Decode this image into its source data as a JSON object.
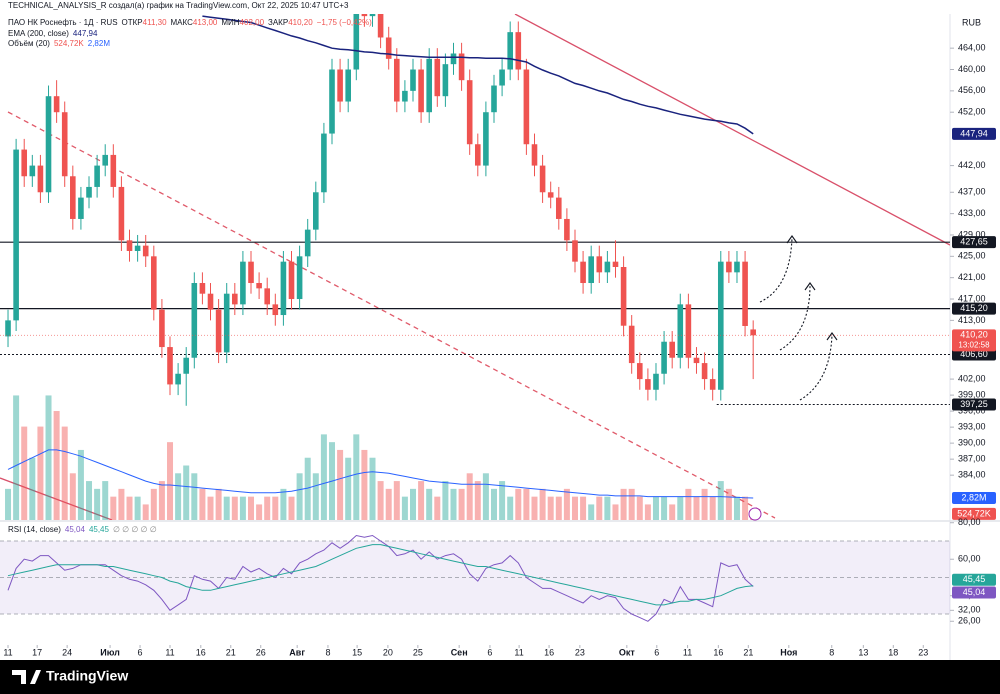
{
  "header": {
    "credit": "TECHNICAL_ANALYSIS_R создал(а) график на TradingView.com, Окт 22, 2025 10:47 UTC+3",
    "symbol": "ПАО НК Роснефть · 1Д · RUS",
    "ohlc": [
      {
        "label": "ОТКР",
        "value": "411,30"
      },
      {
        "label": "МАКС",
        "value": "413,00"
      },
      {
        "label": "МИН",
        "value": "402,00"
      },
      {
        "label": "ЗАКР",
        "value": "410,20"
      }
    ],
    "change": "−1,75 (−0,42%)",
    "currency": "RUB",
    "logo": "TradingView"
  },
  "chart_data": {
    "type": "candlestick",
    "grid": false,
    "up_color": "#26a69a",
    "down_color": "#ef5350",
    "xlim": [
      -0.99,
      116.3
    ],
    "ylim": [
      375.6,
      470.4
    ],
    "xticks": [
      {
        "value": 0,
        "label": "11"
      },
      {
        "value": 3.6,
        "label": "17"
      },
      {
        "value": 7.3,
        "label": "24"
      },
      {
        "value": 12.6,
        "label": "Июл"
      },
      {
        "value": 16.3,
        "label": "6"
      },
      {
        "value": 20,
        "label": "11"
      },
      {
        "value": 23.8,
        "label": "16"
      },
      {
        "value": 27.5,
        "label": "21"
      },
      {
        "value": 31.2,
        "label": "26"
      },
      {
        "value": 35.7,
        "label": "Авг"
      },
      {
        "value": 39.5,
        "label": "8"
      },
      {
        "value": 43.1,
        "label": "15"
      },
      {
        "value": 46.9,
        "label": "20"
      },
      {
        "value": 50.6,
        "label": "25"
      },
      {
        "value": 55.7,
        "label": "Сен"
      },
      {
        "value": 59.5,
        "label": "6"
      },
      {
        "value": 63.1,
        "label": "11"
      },
      {
        "value": 66.8,
        "label": "16"
      },
      {
        "value": 70.6,
        "label": "23"
      },
      {
        "value": 76.4,
        "label": "Окт"
      },
      {
        "value": 80.1,
        "label": "6"
      },
      {
        "value": 83.9,
        "label": "11"
      },
      {
        "value": 87.7,
        "label": "16"
      },
      {
        "value": 91.4,
        "label": "21"
      },
      {
        "value": 96.4,
        "label": "Ноя"
      },
      {
        "value": 101.7,
        "label": "8"
      },
      {
        "value": 105.6,
        "label": "13"
      },
      {
        "value": 109.3,
        "label": "18"
      },
      {
        "value": 113,
        "label": "23"
      }
    ],
    "yticks": [
      {
        "value": 464,
        "label": "464,00"
      },
      {
        "value": 460,
        "label": "460,00"
      },
      {
        "value": 456,
        "label": "456,00"
      },
      {
        "value": 452,
        "label": "452,00"
      },
      {
        "value": 442,
        "label": "442,00"
      },
      {
        "value": 437,
        "label": "437,00"
      },
      {
        "value": 433,
        "label": "433,00"
      },
      {
        "value": 429,
        "label": "429,00"
      },
      {
        "value": 425,
        "label": "425,00"
      },
      {
        "value": 421,
        "label": "421,00"
      },
      {
        "value": 417,
        "label": "417,00"
      },
      {
        "value": 413,
        "label": "413,00"
      },
      {
        "value": 402,
        "label": "402,00"
      },
      {
        "value": 399,
        "label": "399,00"
      },
      {
        "value": 396,
        "label": "396,00"
      },
      {
        "value": 393,
        "label": "393,00"
      },
      {
        "value": 390,
        "label": "390,00"
      },
      {
        "value": 387,
        "label": "387,00"
      },
      {
        "value": 384,
        "label": "384,00"
      }
    ],
    "open": [
      410,
      413,
      445,
      440,
      442,
      437,
      455,
      452,
      440,
      432,
      436,
      438,
      442,
      444,
      438,
      428,
      426,
      427,
      425,
      415,
      408,
      401,
      403,
      406,
      420,
      418,
      415,
      407,
      418,
      416,
      424,
      420,
      419,
      416,
      414,
      424,
      417,
      425,
      430,
      437,
      448,
      460,
      454,
      460,
      472,
      470,
      472,
      466,
      462,
      454,
      456,
      460,
      452,
      462,
      455,
      461,
      463,
      458,
      446,
      442,
      452,
      457,
      460,
      467,
      460,
      446,
      442,
      437,
      436,
      432,
      428,
      424,
      420,
      425,
      422,
      424,
      423,
      412,
      405,
      402,
      400,
      403,
      409,
      406,
      416,
      406,
      405,
      402,
      400,
      424,
      422,
      424,
      411.3
    ],
    "high": [
      415,
      447,
      447,
      444,
      444,
      457,
      458,
      454,
      442,
      438,
      440,
      444,
      446,
      446,
      440,
      430,
      429,
      429,
      427,
      417,
      410,
      405,
      408,
      422,
      422,
      420,
      417,
      420,
      420,
      426,
      426,
      422,
      421,
      418,
      426,
      426,
      427,
      432,
      439,
      450,
      462,
      462,
      462,
      474,
      474,
      474,
      474,
      468,
      464,
      458,
      462,
      462,
      464,
      464,
      463,
      465,
      465,
      460,
      448,
      454,
      459,
      462,
      469,
      469,
      462,
      448,
      444,
      439,
      438,
      434,
      430,
      426,
      427,
      427,
      426,
      428,
      425,
      414,
      407,
      404,
      405,
      411,
      411,
      418,
      418,
      408,
      407,
      404,
      426,
      426,
      426,
      426,
      413
    ],
    "low": [
      408,
      411,
      438,
      438,
      435,
      435,
      450,
      438,
      430,
      430,
      434,
      436,
      440,
      436,
      426,
      424,
      424,
      423,
      413,
      406,
      399,
      399,
      397,
      404,
      416,
      413,
      405,
      405,
      414,
      414,
      418,
      417,
      414,
      412,
      412,
      415,
      415,
      423,
      428,
      435,
      446,
      452,
      452,
      458,
      468,
      468,
      464,
      460,
      452,
      452,
      454,
      450,
      450,
      453,
      453,
      459,
      456,
      444,
      440,
      440,
      450,
      455,
      458,
      458,
      444,
      440,
      435,
      434,
      430,
      426,
      422,
      418,
      418,
      420,
      420,
      421,
      410,
      403,
      400,
      398,
      398,
      401,
      404,
      404,
      404,
      403,
      400,
      398,
      398,
      420,
      420,
      410,
      402
    ],
    "close": [
      413,
      445,
      440,
      442,
      437,
      455,
      452,
      440,
      432,
      436,
      438,
      442,
      444,
      438,
      428,
      426,
      427,
      425,
      415,
      408,
      401,
      403,
      406,
      420,
      418,
      415,
      407,
      418,
      416,
      424,
      420,
      419,
      416,
      414,
      424,
      417,
      425,
      430,
      437,
      448,
      460,
      454,
      460,
      472,
      470,
      472,
      466,
      462,
      454,
      456,
      460,
      452,
      462,
      455,
      461,
      463,
      458,
      446,
      442,
      452,
      457,
      460,
      467,
      460,
      446,
      442,
      437,
      436,
      432,
      428,
      424,
      420,
      425,
      422,
      424,
      423,
      412,
      405,
      402,
      400,
      403,
      409,
      406,
      416,
      406,
      405,
      402,
      400,
      424,
      422,
      424,
      411.95,
      410.2
    ],
    "last_price": {
      "label": "410,20",
      "countdown": "13:02:58",
      "color": "#ef5350"
    },
    "series": [
      {
        "name": "EMA (200, close)",
        "color": "#1a237e",
        "value_label": "447,94",
        "values": [
          null,
          null,
          null,
          null,
          null,
          null,
          null,
          null,
          null,
          null,
          null,
          null,
          null,
          null,
          null,
          null,
          null,
          null,
          null,
          null,
          null,
          null,
          null,
          null,
          470.0,
          469.8,
          469.6,
          469.4,
          469.2,
          469.0,
          468.8,
          468.3,
          467.8,
          467.3,
          466.8,
          466.3,
          465.9,
          465.4,
          465.0,
          464.5,
          464.0,
          463.8,
          463.7,
          463.5,
          463.3,
          463.2,
          463.0,
          462.9,
          462.7,
          462.6,
          462.5,
          462.4,
          462.3,
          462.3,
          462.3,
          462.3,
          462.3,
          462.2,
          462.2,
          462.1,
          462.1,
          462.1,
          462.0,
          461.7,
          461.4,
          460.6,
          459.9,
          459.3,
          458.8,
          458.1,
          457.4,
          457.0,
          456.5,
          456.0,
          455.6,
          455.0,
          454.4,
          454.0,
          453.5,
          453.1,
          452.8,
          452.4,
          452.0,
          451.6,
          451.3,
          451.0,
          450.7,
          450.5,
          450.3,
          450.0,
          449.8,
          449.0,
          447.94
        ]
      }
    ],
    "levels": [
      {
        "value": 427.65,
        "label": "427,65",
        "style": "solid"
      },
      {
        "value": 415.2,
        "label": "415,20",
        "style": "solid"
      },
      {
        "value": 406.6,
        "label": "406,60",
        "style": "dotted"
      },
      {
        "value": 397.25,
        "label": "397,25",
        "style": "dotted",
        "from": 87.5
      }
    ],
    "volume": {
      "name": "Объём (20)",
      "ylim": [
        0,
        16.7
      ],
      "value_label": "524,72K",
      "values": [
        4,
        16,
        12,
        8,
        12,
        16,
        14,
        12,
        6,
        9,
        5,
        4,
        5,
        3,
        4,
        3,
        3,
        2,
        4,
        5,
        10,
        6,
        7,
        6,
        4,
        3,
        4,
        3,
        3,
        3,
        3,
        2,
        3,
        3,
        4,
        3,
        6,
        8,
        6,
        11,
        10,
        9,
        8,
        11,
        9,
        8,
        5,
        4,
        5,
        3,
        4,
        5,
        4,
        3,
        5,
        4,
        4,
        6,
        5,
        6,
        4,
        5,
        3,
        4,
        4,
        3,
        4,
        3,
        3,
        4,
        3,
        3,
        2,
        3,
        3,
        2,
        4,
        4,
        3,
        2,
        3,
        3,
        2,
        3,
        4,
        3,
        4,
        3,
        5,
        4,
        3,
        3,
        0.52472
      ],
      "ma": {
        "color": "#2962ff",
        "value_label": "2,82M",
        "values": [
          6.5,
          7,
          7.5,
          8,
          8.5,
          9,
          9,
          8.8,
          8.5,
          8.2,
          7.8,
          7.4,
          7,
          6.6,
          6.2,
          5.8,
          5.4,
          5,
          4.7,
          4.5,
          4.5,
          4.4,
          4.3,
          4.2,
          4.1,
          4,
          3.9,
          3.8,
          3.7,
          3.6,
          3.5,
          3.5,
          3.5,
          3.5,
          3.6,
          3.7,
          3.9,
          4.1,
          4.4,
          4.7,
          5,
          5.3,
          5.6,
          5.9,
          6.1,
          6.2,
          6.1,
          6,
          5.8,
          5.6,
          5.4,
          5.2,
          5,
          4.9,
          4.8,
          4.7,
          4.6,
          4.6,
          4.6,
          4.6,
          4.5,
          4.4,
          4.3,
          4.2,
          4.1,
          4,
          3.9,
          3.8,
          3.7,
          3.6,
          3.5,
          3.4,
          3.3,
          3.2,
          3.2,
          3.1,
          3.1,
          3.1,
          3.1,
          3,
          3,
          3,
          3,
          3,
          3,
          3,
          3,
          3,
          3,
          2.95,
          2.9,
          2.85,
          2.82
        ]
      }
    },
    "rsi": {
      "name": "RSI (14, close)",
      "placeholders": "∅ ∅ ∅ ∅ ∅",
      "ylim": [
        13,
        80.4
      ],
      "bands": [
        30,
        50,
        70
      ],
      "yticks": [
        {
          "value": 80,
          "label": "80,00"
        },
        {
          "value": 60,
          "label": "60,00"
        },
        {
          "value": 40,
          "label": "40,00"
        },
        {
          "value": 32,
          "label": "32,00"
        },
        {
          "value": 26,
          "label": "26,00"
        }
      ],
      "series": [
        {
          "color": "#7e57c2",
          "value_label": "45,04",
          "values": [
            43,
            55,
            60,
            59,
            62,
            62,
            58,
            54,
            55,
            57,
            57,
            57,
            57,
            54,
            51,
            49,
            48,
            46,
            43,
            38,
            32,
            35,
            38,
            51,
            49,
            48,
            44,
            50,
            49,
            56,
            53,
            55,
            52,
            50,
            55,
            52,
            58,
            60,
            63,
            65,
            69,
            66,
            69,
            73,
            72,
            73,
            70,
            67,
            62,
            63,
            65,
            60,
            64,
            60,
            62,
            63,
            60,
            52,
            48,
            55,
            57,
            58,
            62,
            58,
            50,
            47,
            44,
            44,
            42,
            40,
            38,
            36,
            40,
            38,
            40,
            39,
            33,
            30,
            28,
            26,
            30,
            38,
            36,
            45,
            38,
            38,
            36,
            34,
            58,
            56,
            57,
            49,
            45.04
          ]
        },
        {
          "color": "#26a69a",
          "value_label": "45,45",
          "values": [
            51,
            52,
            53,
            54,
            55,
            56,
            57,
            57,
            57,
            57,
            57,
            57,
            56,
            56,
            55,
            54,
            53,
            52,
            51,
            50,
            48,
            47,
            45,
            44,
            43,
            43,
            44,
            45,
            46,
            47,
            48,
            49,
            50,
            51,
            52,
            53,
            54,
            55,
            56,
            58,
            60,
            62,
            64,
            66,
            67,
            68,
            68,
            67,
            66,
            65,
            64,
            63,
            62,
            61,
            60,
            59,
            58,
            57,
            56,
            56,
            55,
            54,
            53,
            52,
            51,
            50,
            49,
            48,
            47,
            46,
            45,
            44,
            43,
            42,
            41,
            40,
            39,
            38,
            37,
            36,
            35,
            35,
            36,
            37,
            37,
            38,
            38,
            39,
            40,
            42,
            44,
            45,
            45.45
          ]
        }
      ]
    }
  }
}
